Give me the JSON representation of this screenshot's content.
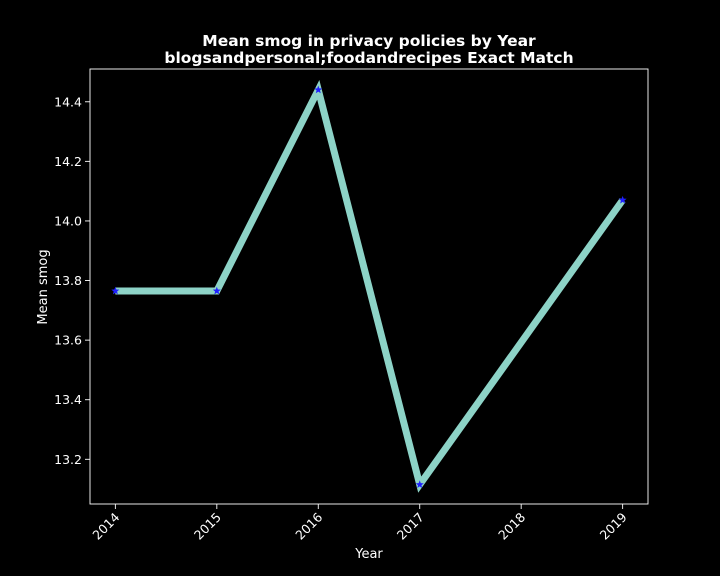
{
  "chart_data": {
    "type": "line",
    "title": "Mean smog in privacy policies by Year",
    "subtitle": "blogsandpersonal;foodandrecipes Exact Match",
    "xlabel": "Year",
    "ylabel": "Mean smog",
    "x": [
      2014,
      2015,
      2016,
      2017,
      2019
    ],
    "y": [
      13.765,
      13.765,
      14.44,
      13.115,
      14.07
    ],
    "xticks": [
      "2014",
      "2015",
      "2016",
      "2017",
      "2018",
      "2019"
    ],
    "yticks": [
      "13.2",
      "13.4",
      "13.6",
      "13.8",
      "14.0",
      "14.2",
      "14.4"
    ],
    "xlim": [
      2013.75,
      2019.25
    ],
    "ylim": [
      13.05,
      14.51
    ],
    "grid": false,
    "line_color": "#8dd3c7",
    "marker_color": "#1f1fff",
    "marker": "star"
  }
}
